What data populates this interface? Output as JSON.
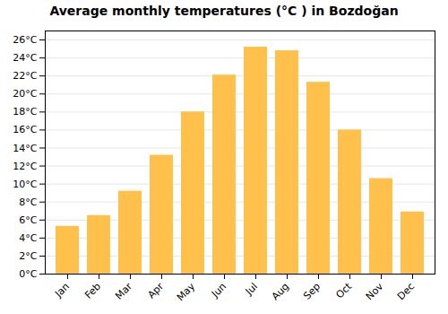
{
  "chart_data": {
    "type": "bar",
    "title": "Average monthly temperatures (°C ) in Bozdoğan",
    "categories": [
      "Jan",
      "Feb",
      "Mar",
      "Apr",
      "May",
      "Jun",
      "Jul",
      "Aug",
      "Sep",
      "Oct",
      "Nov",
      "Dec"
    ],
    "values": [
      5.3,
      6.5,
      9.2,
      13.2,
      18.0,
      22.1,
      25.2,
      24.8,
      21.3,
      16.0,
      10.6,
      6.9
    ],
    "color": "#FFC04C",
    "ylim": [
      0,
      27
    ],
    "yticks": [
      {
        "value": 0,
        "label": "0°C"
      },
      {
        "value": 2,
        "label": "2°C"
      },
      {
        "value": 4,
        "label": "4°C"
      },
      {
        "value": 6,
        "label": "6°C"
      },
      {
        "value": 8,
        "label": "8°C"
      },
      {
        "value": 10,
        "label": "10°C"
      },
      {
        "value": 12,
        "label": "12°C"
      },
      {
        "value": 14,
        "label": "14°C"
      },
      {
        "value": 16,
        "label": "16°C"
      },
      {
        "value": 18,
        "label": "18°C"
      },
      {
        "value": 20,
        "label": "20°C"
      },
      {
        "value": 22,
        "label": "22°C"
      },
      {
        "value": 24,
        "label": "24°C"
      },
      {
        "value": 26,
        "label": "26°C"
      }
    ],
    "grid": true
  }
}
